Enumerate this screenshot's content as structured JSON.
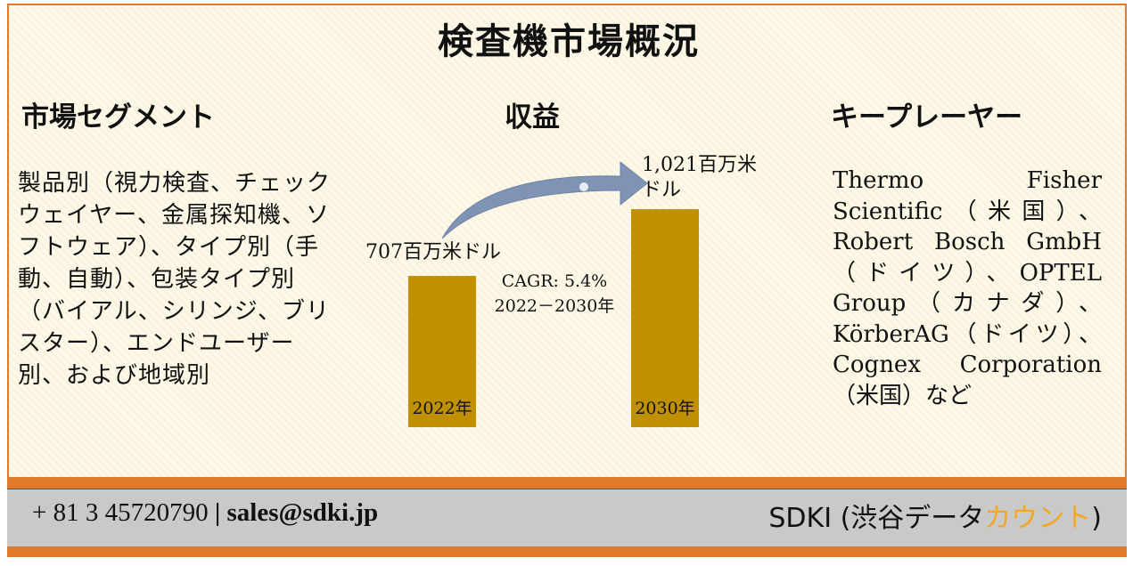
{
  "title": "検査機市場概況",
  "segment": {
    "heading": "市場セグメント",
    "text": "製品別（視力検査、チェックウェイヤー、金属探知機、ソフトウェア）、タイプ別（手動、自動）、包装タイプ別（バイアル、シリンジ、ブリスター）、エンドユーザー別、および地域別"
  },
  "revenue": {
    "heading": "収益",
    "value_2022": "707百万米ドル",
    "value_2030_line1": "1,021百万米",
    "value_2030_line2": "ドル",
    "cagr_line1": "CAGR: 5.4%",
    "cagr_line2": "2022－2030年"
  },
  "chart_data": {
    "type": "bar",
    "categories": [
      "2022年",
      "2030年"
    ],
    "values": [
      707,
      1021
    ],
    "unit": "百万米ドル"
  },
  "players": {
    "heading": "キープレーヤー",
    "text": "Thermo Fisher Scientific（米国）、Robert Bosch GmbH（ドイツ）、OPTEL Group（カナダ）、KörberAG（ドイツ）、Cognex Corporation（米国）など"
  },
  "footer": {
    "phone": "+ 81 3 45720790",
    "separator": "|",
    "email": "sales@sdki.jp",
    "brand_main": "SDKI (渋谷データ",
    "brand_accent": "カウント",
    "brand_end": ")"
  },
  "colors": {
    "border": "#e07a2c",
    "bar": "#bf9000",
    "arrow": "#7f93b5",
    "footer_gray": "#c9c9c9",
    "brand_accent": "#f5a623"
  }
}
